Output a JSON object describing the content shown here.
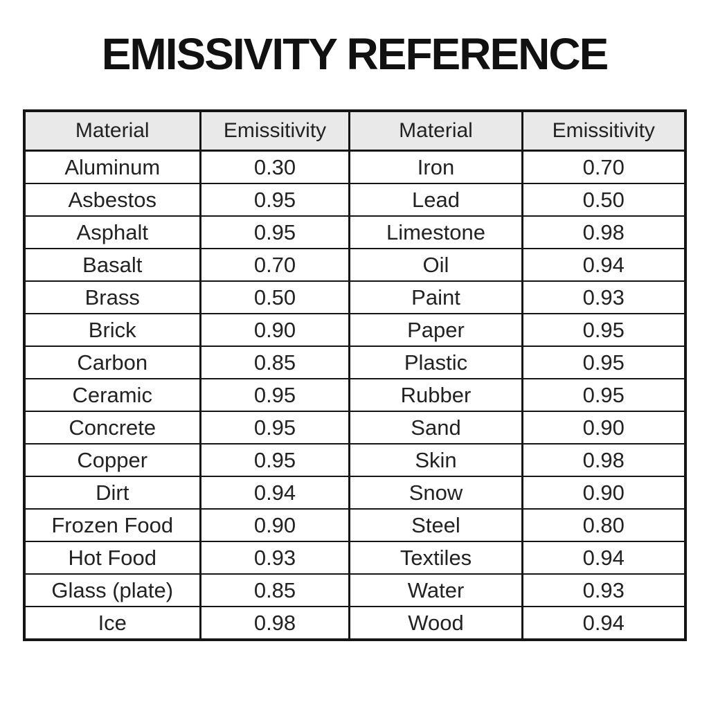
{
  "page": {
    "title": "EMISSIVITY REFERENCE"
  },
  "colors": {
    "background": "#ffffff",
    "header_background": "#e9e9e9",
    "border": "#151515",
    "text": "#222222",
    "title_text": "#111111"
  },
  "table": {
    "headers": [
      "Material",
      "Emissitivity",
      "Material",
      "Emissitivity"
    ],
    "rows": [
      [
        "Aluminum",
        "0.30",
        "Iron",
        "0.70"
      ],
      [
        "Asbestos",
        "0.95",
        "Lead",
        "0.50"
      ],
      [
        "Asphalt",
        "0.95",
        "Limestone",
        "0.98"
      ],
      [
        "Basalt",
        "0.70",
        "Oil",
        "0.94"
      ],
      [
        "Brass",
        "0.50",
        "Paint",
        "0.93"
      ],
      [
        "Brick",
        "0.90",
        "Paper",
        "0.95"
      ],
      [
        "Carbon",
        "0.85",
        "Plastic",
        "0.95"
      ],
      [
        "Ceramic",
        "0.95",
        "Rubber",
        "0.95"
      ],
      [
        "Concrete",
        "0.95",
        "Sand",
        "0.90"
      ],
      [
        "Copper",
        "0.95",
        "Skin",
        "0.98"
      ],
      [
        "Dirt",
        "0.94",
        "Snow",
        "0.90"
      ],
      [
        "Frozen Food",
        "0.90",
        "Steel",
        "0.80"
      ],
      [
        "Hot Food",
        "0.93",
        "Textiles",
        "0.94"
      ],
      [
        "Glass (plate)",
        "0.85",
        "Water",
        "0.93"
      ],
      [
        "Ice",
        "0.98",
        "Wood",
        "0.94"
      ]
    ]
  }
}
